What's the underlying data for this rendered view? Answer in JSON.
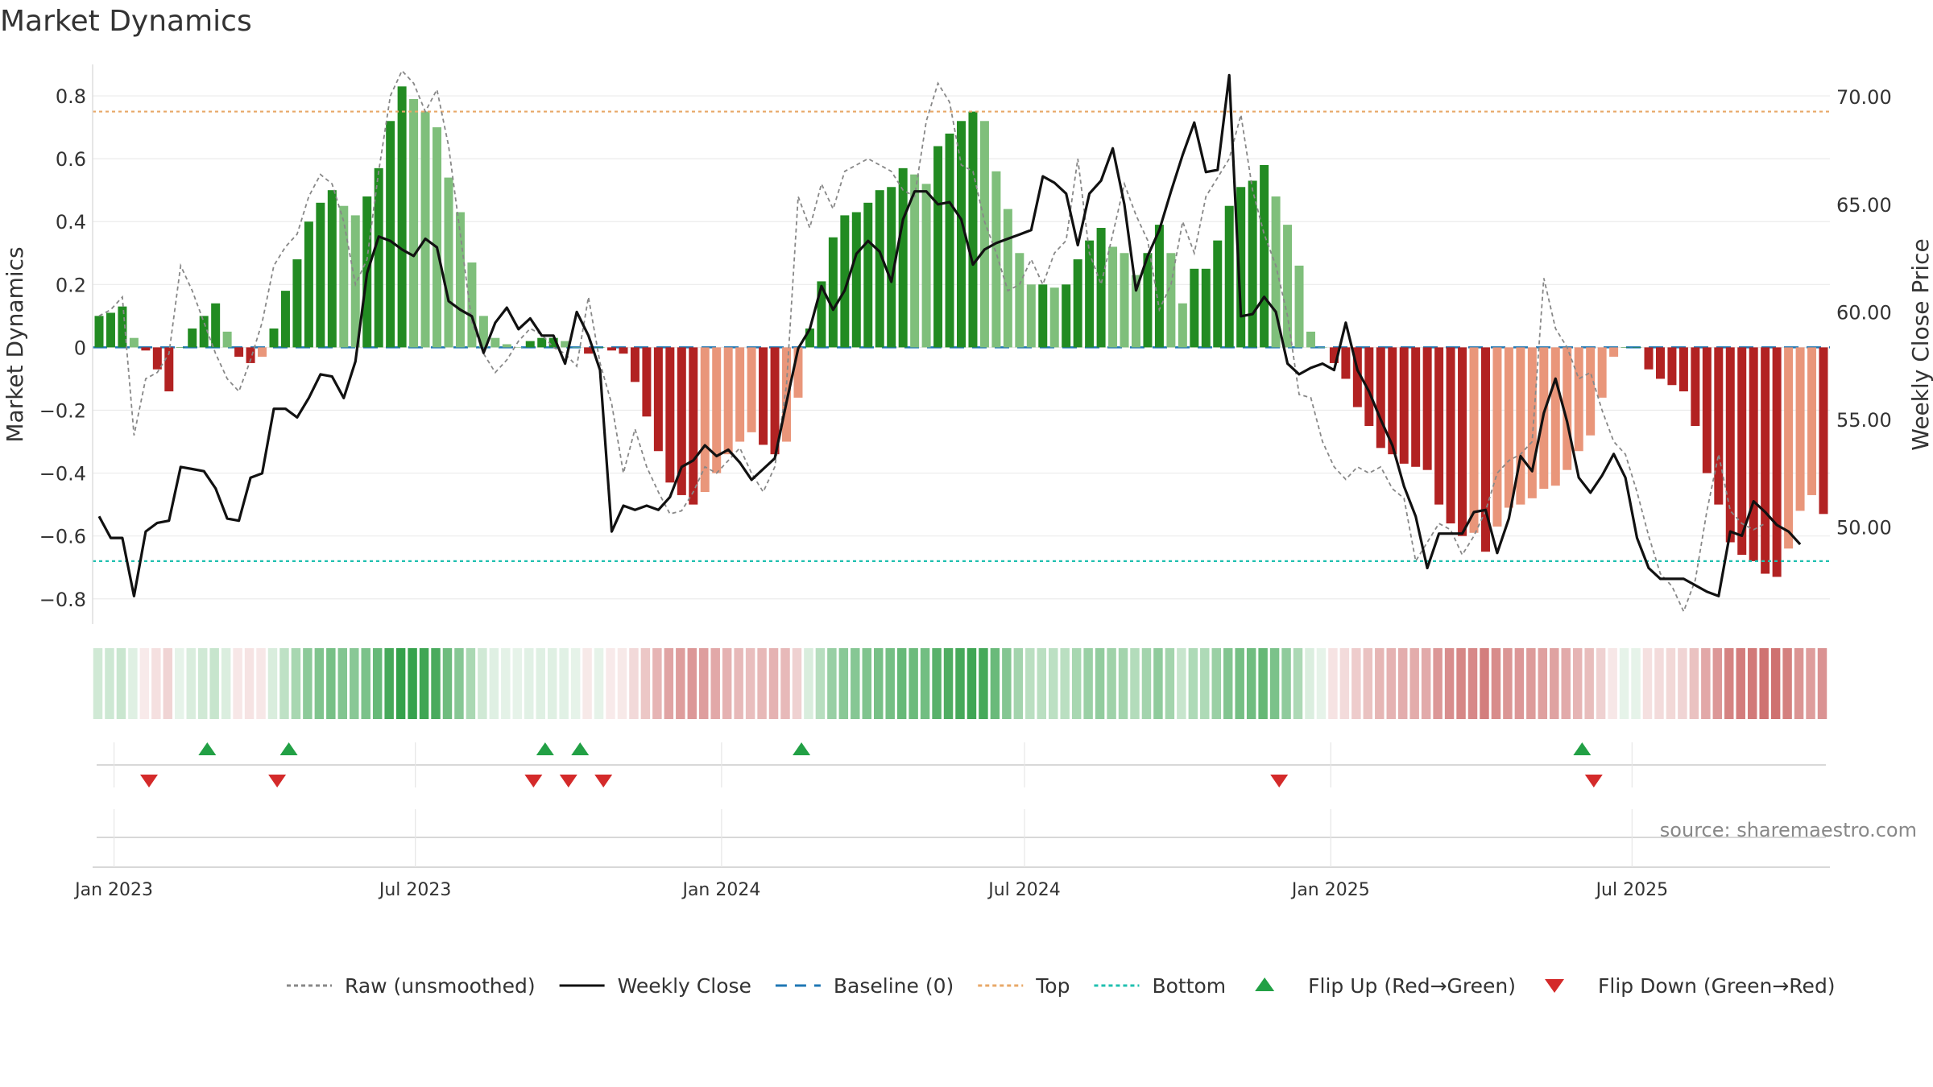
{
  "title": "Market Dynamics",
  "source": "source: sharemaestro.com",
  "chart_data": {
    "type": "bar",
    "title": "Market Dynamics",
    "ylabel": "Market Dynamics",
    "y2label": "Weekly Close Price",
    "ylim": [
      -0.88,
      0.9
    ],
    "y2lim": [
      45.5,
      71.5
    ],
    "y_ticks": [
      -0.8,
      -0.6,
      -0.4,
      -0.2,
      0,
      0.2,
      0.4,
      0.6,
      0.8
    ],
    "y_tick_labels": [
      "−0.8",
      "−0.6",
      "−0.4",
      "−0.2",
      "0",
      "0.2",
      "0.4",
      "0.6",
      "0.8"
    ],
    "y2_ticks": [
      50,
      55,
      60,
      65,
      70
    ],
    "y2_tick_labels": [
      "50.00",
      "55.00",
      "60.00",
      "65.00",
      "70.00"
    ],
    "x_start": "2022-12-23",
    "x_step_days": 7,
    "x_ticks": [
      "2023-01-01",
      "2023-07-01",
      "2024-01-01",
      "2024-07-01",
      "2025-01-01",
      "2025-07-01"
    ],
    "x_tick_labels": [
      "Jan 2023",
      "Jul 2023",
      "Jan 2024",
      "Jul 2024",
      "Jan 2025",
      "Jul 2025"
    ],
    "top_level": 0.75,
    "bottom_level": -0.68,
    "baseline": 0,
    "grid": true,
    "legend_position": "bottom-center",
    "values": [
      0.1,
      0.11,
      0.13,
      0.03,
      -0.01,
      -0.07,
      -0.14,
      0.0,
      0.06,
      0.1,
      0.14,
      0.05,
      -0.03,
      -0.05,
      -0.03,
      0.06,
      0.18,
      0.28,
      0.4,
      0.46,
      0.5,
      0.45,
      0.42,
      0.48,
      0.57,
      0.72,
      0.83,
      0.79,
      0.75,
      0.7,
      0.54,
      0.43,
      0.27,
      0.1,
      0.03,
      0.01,
      0.0,
      0.02,
      0.03,
      0.03,
      0.02,
      0.0,
      -0.02,
      0.0,
      -0.01,
      -0.02,
      -0.11,
      -0.22,
      -0.33,
      -0.43,
      -0.47,
      -0.5,
      -0.46,
      -0.4,
      -0.34,
      -0.3,
      -0.27,
      -0.31,
      -0.34,
      -0.3,
      -0.16,
      0.06,
      0.21,
      0.35,
      0.42,
      0.43,
      0.46,
      0.5,
      0.51,
      0.57,
      0.55,
      0.52,
      0.64,
      0.68,
      0.72,
      0.75,
      0.72,
      0.56,
      0.44,
      0.3,
      0.2,
      0.2,
      0.19,
      0.2,
      0.28,
      0.34,
      0.38,
      0.32,
      0.3,
      0.23,
      0.3,
      0.39,
      0.3,
      0.14,
      0.25,
      0.25,
      0.34,
      0.45,
      0.51,
      0.53,
      0.58,
      0.48,
      0.39,
      0.26,
      0.05,
      0.0,
      -0.05,
      -0.1,
      -0.19,
      -0.25,
      -0.32,
      -0.34,
      -0.37,
      -0.38,
      -0.39,
      -0.5,
      -0.56,
      -0.6,
      -0.59,
      -0.65,
      -0.57,
      -0.51,
      -0.5,
      -0.48,
      -0.45,
      -0.44,
      -0.39,
      -0.33,
      -0.28,
      -0.16,
      -0.03,
      0.0,
      0.0,
      -0.07,
      -0.1,
      -0.12,
      -0.14,
      -0.25,
      -0.4,
      -0.5,
      -0.62,
      -0.66,
      -0.68,
      -0.72,
      -0.73,
      -0.64,
      -0.52,
      -0.47,
      -0.53
    ],
    "series": [
      {
        "name": "Raw (unsmoothed)",
        "values": [
          0.1,
          0.12,
          0.16,
          -0.28,
          -0.1,
          -0.08,
          -0.02,
          0.26,
          0.18,
          0.08,
          -0.02,
          -0.1,
          -0.14,
          -0.04,
          0.08,
          0.26,
          0.32,
          0.36,
          0.48,
          0.55,
          0.52,
          0.4,
          0.2,
          0.28,
          0.56,
          0.8,
          0.88,
          0.84,
          0.75,
          0.82,
          0.64,
          0.36,
          0.08,
          -0.02,
          -0.08,
          -0.04,
          0.02,
          0.06,
          0.04,
          0.0,
          -0.02,
          -0.06,
          0.16,
          -0.05,
          -0.18,
          -0.4,
          -0.26,
          -0.38,
          -0.46,
          -0.53,
          -0.52,
          -0.46,
          -0.38,
          -0.4,
          -0.36,
          -0.32,
          -0.4,
          -0.46,
          -0.38,
          -0.12,
          0.48,
          0.38,
          0.52,
          0.44,
          0.56,
          0.58,
          0.6,
          0.58,
          0.56,
          0.5,
          0.48,
          0.72,
          0.84,
          0.78,
          0.58,
          0.56,
          0.4,
          0.3,
          0.18,
          0.2,
          0.28,
          0.2,
          0.3,
          0.34,
          0.6,
          0.3,
          0.2,
          0.36,
          0.52,
          0.42,
          0.34,
          0.12,
          0.2,
          0.4,
          0.3,
          0.48,
          0.54,
          0.6,
          0.74,
          0.5,
          0.36,
          0.26,
          0.1,
          -0.15,
          -0.16,
          -0.3,
          -0.38,
          -0.42,
          -0.38,
          -0.4,
          -0.38,
          -0.45,
          -0.48,
          -0.68,
          -0.62,
          -0.56,
          -0.58,
          -0.66,
          -0.6,
          -0.52,
          -0.4,
          -0.36,
          -0.34,
          -0.3,
          0.22,
          0.06,
          0.0,
          -0.1,
          -0.08,
          -0.2,
          -0.3,
          -0.34,
          -0.46,
          -0.6,
          -0.72,
          -0.76,
          -0.84,
          -0.74,
          -0.52,
          -0.34,
          -0.52,
          -0.56,
          -0.58,
          -0.56
        ]
      },
      {
        "name": "Weekly Close",
        "values": [
          50.5,
          49.5,
          49.5,
          46.8,
          49.8,
          50.2,
          50.3,
          52.8,
          52.7,
          52.6,
          51.8,
          50.4,
          50.3,
          52.3,
          52.5,
          55.5,
          55.5,
          55.1,
          56.0,
          57.1,
          57.0,
          56.0,
          57.7,
          61.8,
          63.5,
          63.3,
          62.9,
          62.6,
          63.4,
          63.0,
          60.5,
          60.1,
          59.8,
          58.1,
          59.5,
          60.2,
          59.2,
          59.7,
          58.9,
          58.9,
          57.6,
          60.0,
          58.9,
          57.3,
          49.8,
          51.0,
          50.8,
          51.0,
          50.8,
          51.4,
          52.8,
          53.1,
          53.8,
          53.3,
          53.6,
          53.0,
          52.2,
          52.7,
          53.2,
          55.8,
          58.3,
          59.2,
          61.2,
          60.1,
          61.0,
          62.7,
          63.3,
          62.8,
          61.4,
          64.3,
          65.6,
          65.6,
          65.0,
          65.1,
          64.3,
          62.2,
          62.9,
          63.2,
          63.4,
          63.6,
          63.8,
          66.3,
          66.0,
          65.5,
          63.1,
          65.5,
          66.1,
          67.6,
          65.0,
          61.0,
          62.6,
          63.8,
          65.6,
          67.3,
          68.8,
          66.5,
          66.6,
          71.0,
          59.8,
          59.9,
          60.7,
          60.0,
          57.6,
          57.1,
          57.4,
          57.6,
          57.3,
          59.5,
          57.3,
          56.3,
          55.0,
          53.8,
          51.9,
          50.5,
          48.1,
          49.7,
          49.7,
          49.7,
          50.7,
          50.8,
          48.8,
          50.4,
          53.3,
          52.6,
          55.3,
          56.9,
          54.9,
          52.3,
          51.6,
          52.4,
          53.4,
          52.3,
          49.5,
          48.1,
          47.6,
          47.6,
          47.6,
          47.3,
          47.0,
          46.8,
          49.8,
          49.6,
          51.2,
          50.7,
          50.1,
          49.8,
          49.2
        ]
      }
    ],
    "heat_strip": {
      "values": [
        0.1,
        0.11,
        0.13,
        0.03,
        -0.01,
        -0.07,
        -0.14,
        0.0,
        0.06,
        0.1,
        0.14,
        0.05,
        -0.03,
        -0.05,
        -0.03,
        0.06,
        0.18,
        0.28,
        0.4,
        0.46,
        0.5,
        0.45,
        0.42,
        0.48,
        0.57,
        0.72,
        0.83,
        0.79,
        0.75,
        0.7,
        0.54,
        0.43,
        0.27,
        0.1,
        0.03,
        0.01,
        0.0,
        0.02,
        0.03,
        0.03,
        0.02,
        0.0,
        -0.02,
        0.0,
        -0.01,
        -0.02,
        -0.11,
        -0.22,
        -0.33,
        -0.43,
        -0.47,
        -0.5,
        -0.46,
        -0.4,
        -0.34,
        -0.3,
        -0.27,
        -0.31,
        -0.34,
        -0.3,
        -0.16,
        0.06,
        0.21,
        0.35,
        0.42,
        0.43,
        0.46,
        0.5,
        0.51,
        0.57,
        0.55,
        0.52,
        0.64,
        0.68,
        0.72,
        0.75,
        0.72,
        0.56,
        0.44,
        0.3,
        0.2,
        0.2,
        0.19,
        0.2,
        0.28,
        0.34,
        0.38,
        0.32,
        0.3,
        0.23,
        0.3,
        0.39,
        0.3,
        0.14,
        0.25,
        0.25,
        0.34,
        0.45,
        0.51,
        0.53,
        0.58,
        0.48,
        0.39,
        0.26,
        0.05,
        0.0,
        -0.05,
        -0.1,
        -0.19,
        -0.25,
        -0.32,
        -0.34,
        -0.37,
        -0.38,
        -0.39,
        -0.5,
        -0.56,
        -0.6,
        -0.59,
        -0.65,
        -0.57,
        -0.51,
        -0.5,
        -0.48,
        -0.45,
        -0.44,
        -0.39,
        -0.33,
        -0.28,
        -0.16,
        -0.03,
        0.0,
        0.0,
        -0.07,
        -0.1,
        -0.12,
        -0.14,
        -0.25,
        -0.4,
        -0.5,
        -0.62,
        -0.66,
        -0.68,
        -0.72,
        -0.73,
        -0.64,
        -0.52,
        -0.47,
        -0.53
      ]
    },
    "flip_up_dates": [
      "2023-02-26",
      "2023-04-16",
      "2023-09-17",
      "2023-10-08",
      "2024-02-18",
      "2025-06-01"
    ],
    "flip_down_dates": [
      "2023-01-22",
      "2023-04-09",
      "2023-09-10",
      "2023-10-01",
      "2023-10-22",
      "2024-12-01",
      "2025-06-08"
    ],
    "legend": [
      {
        "label": "Raw (unsmoothed)",
        "kind": "dotted-line",
        "color": "#888888"
      },
      {
        "label": "Weekly Close",
        "kind": "solid-line",
        "color": "#111111"
      },
      {
        "label": "Baseline (0)",
        "kind": "dashed-line",
        "color": "#1f77b4"
      },
      {
        "label": "Top",
        "kind": "dotted-line",
        "color": "#e8a868"
      },
      {
        "label": "Bottom",
        "kind": "dotted-line",
        "color": "#20c0b0"
      },
      {
        "label": "Flip Up (Red→Green)",
        "kind": "triangle-up",
        "color": "#22a045"
      },
      {
        "label": "Flip Down (Green→Red)",
        "kind": "triangle-down",
        "color": "#d42a2a"
      }
    ],
    "colors": {
      "green_strong": "#228b22",
      "green_light": "#7fbf7b",
      "red_strong": "#b22222",
      "red_light": "#e9967a",
      "top_line": "#e8a868",
      "bottom_line": "#20c0b0",
      "baseline": "#1f77b4",
      "close_line": "#111111",
      "raw_line": "#888888"
    }
  }
}
